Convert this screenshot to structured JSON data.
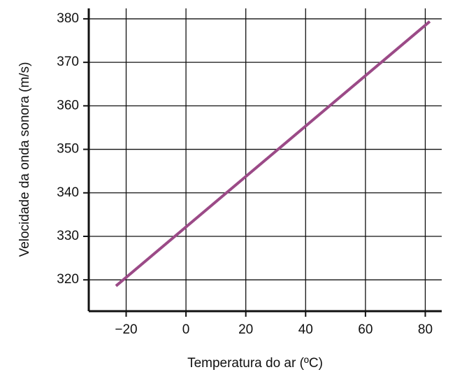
{
  "chart_data": {
    "type": "line",
    "x_label": "Temperatura do ar (ºC)",
    "y_label": "Velocidade da onda sonora (m/s)",
    "x": [
      -23.4,
      81.5
    ],
    "series": [
      {
        "color": "#9b4a87",
        "values": [
          318.6,
          379.4
        ]
      }
    ],
    "xlim": [
      -32.5,
      85.5
    ],
    "ylim": [
      312.8,
      382.4
    ],
    "xticks": [
      {
        "value": -20,
        "label": "−20"
      },
      0,
      20,
      40,
      60,
      80
    ],
    "yticks": [
      320,
      330,
      340,
      350,
      360,
      370,
      380
    ],
    "grid": true
  }
}
